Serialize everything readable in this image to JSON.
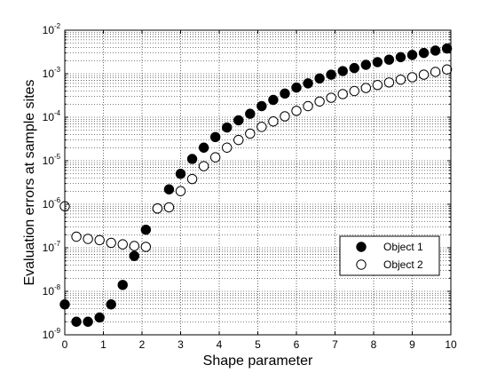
{
  "chart_data": {
    "type": "scatter",
    "title": "",
    "xlabel": "Shape parameter",
    "ylabel": "Evaluation errors at sample sites",
    "xlim": [
      0,
      10
    ],
    "ylim": [
      1e-09,
      0.01
    ],
    "yscale": "log",
    "x_ticks": [
      "0",
      "1",
      "2",
      "3",
      "4",
      "5",
      "6",
      "7",
      "8",
      "9",
      "10"
    ],
    "y_ticks": [
      {
        "base": "10",
        "exp": "-9",
        "value": 1e-09
      },
      {
        "base": "10",
        "exp": "-8",
        "value": 1e-08
      },
      {
        "base": "10",
        "exp": "-7",
        "value": 1e-07
      },
      {
        "base": "10",
        "exp": "-6",
        "value": 1e-06
      },
      {
        "base": "10",
        "exp": "-5",
        "value": 1e-05
      },
      {
        "base": "10",
        "exp": "-4",
        "value": 0.0001
      },
      {
        "base": "10",
        "exp": "-3",
        "value": 0.001
      },
      {
        "base": "10",
        "exp": "-2",
        "value": 0.01
      }
    ],
    "grid": true,
    "legend_position": "lower-right",
    "series": [
      {
        "name": "Object 1",
        "marker": "filled-circle",
        "color": "#000000",
        "x": [
          0,
          0.3,
          0.6,
          0.9,
          1.2,
          1.5,
          1.8,
          2.1,
          2.4,
          2.7,
          3.0,
          3.3,
          3.6,
          3.9,
          4.2,
          4.5,
          4.8,
          5.1,
          5.4,
          5.7,
          6.0,
          6.3,
          6.6,
          6.9,
          7.2,
          7.5,
          7.8,
          8.1,
          8.4,
          8.7,
          9.0,
          9.3,
          9.6,
          9.9
        ],
        "y": [
          5e-09,
          2e-09,
          2e-09,
          2.5e-09,
          5e-09,
          1.4e-08,
          6.5e-08,
          2.6e-07,
          8e-07,
          2.2e-06,
          5e-06,
          1.1e-05,
          2e-05,
          3.5e-05,
          5.8e-05,
          8.5e-05,
          0.00012,
          0.00018,
          0.00025,
          0.00035,
          0.00048,
          0.0006,
          0.00078,
          0.00095,
          0.00115,
          0.00135,
          0.0016,
          0.00185,
          0.0021,
          0.0024,
          0.0027,
          0.003,
          0.0034,
          0.0038
        ]
      },
      {
        "name": "Object 2",
        "marker": "open-circle",
        "color": "#000000",
        "x": [
          0,
          0.3,
          0.6,
          0.9,
          1.2,
          1.5,
          1.8,
          2.1,
          2.4,
          2.7,
          3.0,
          3.3,
          3.6,
          3.9,
          4.2,
          4.5,
          4.8,
          5.1,
          5.4,
          5.7,
          6.0,
          6.3,
          6.6,
          6.9,
          7.2,
          7.5,
          7.8,
          8.1,
          8.4,
          8.7,
          9.0,
          9.3,
          9.6,
          9.9
        ],
        "y": [
          9e-07,
          1.8e-07,
          1.6e-07,
          1.5e-07,
          1.3e-07,
          1.2e-07,
          1.1e-07,
          1.05e-07,
          8e-07,
          8.5e-07,
          2e-06,
          3.8e-06,
          7.5e-06,
          1.2e-05,
          2e-05,
          3e-05,
          4.2e-05,
          6e-05,
          8e-05,
          0.000105,
          0.00014,
          0.00018,
          0.00023,
          0.00028,
          0.00034,
          0.0004,
          0.00047,
          0.00055,
          0.00063,
          0.00073,
          0.00083,
          0.00095,
          0.0011,
          0.00125
        ]
      }
    ]
  }
}
